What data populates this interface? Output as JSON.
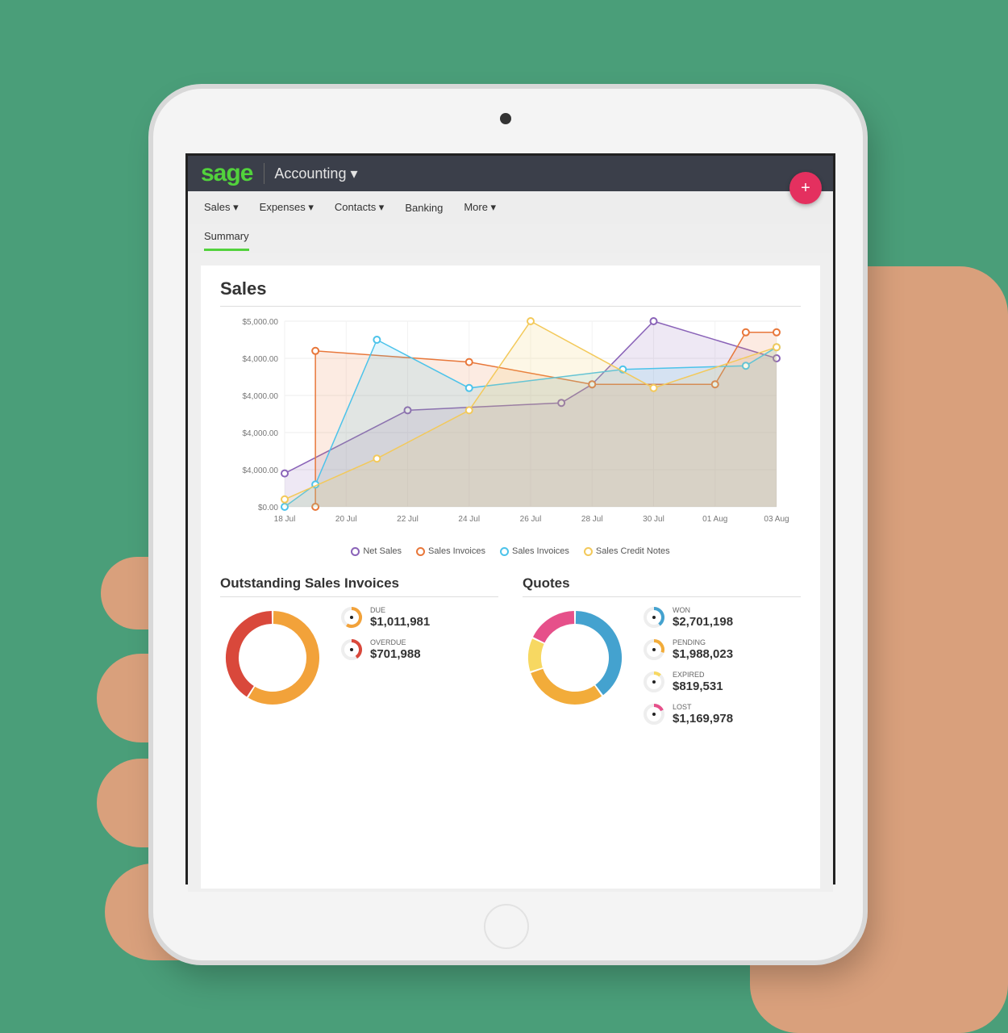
{
  "header": {
    "logo": "sage",
    "app": "Accounting ▾",
    "add_button": "+"
  },
  "nav": [
    "Sales ▾",
    "Expenses ▾",
    "Contacts ▾",
    "Banking",
    "More ▾"
  ],
  "subnav": {
    "active": "Summary"
  },
  "colors": {
    "background": "#4a9e79",
    "topbar": "#3b3f4a",
    "brand": "#52d23c",
    "fab": "#e4305f"
  },
  "sales": {
    "title": "Sales",
    "chart_data": {
      "type": "area",
      "x_ticks": [
        "18 Jul",
        "20 Jul",
        "22 Jul",
        "24 Jul",
        "26 Jul",
        "28 Jul",
        "30 Jul",
        "01 Aug",
        "03 Aug"
      ],
      "y_ticks": [
        "$0.00",
        "$4,000.00",
        "$4,000.00",
        "$4,000.00",
        "$4,000.00",
        "$5,000.00"
      ],
      "ylim": [
        0,
        5000
      ],
      "grid": true,
      "legend": "bottom",
      "series": [
        {
          "name": "Net Sales",
          "color": "#8a63b8",
          "x": [
            18,
            22,
            27,
            28,
            30,
            34
          ],
          "y": [
            900,
            2600,
            2800,
            3300,
            5000,
            4000
          ]
        },
        {
          "name": "Sales Invoices",
          "color": "#e8773a",
          "x": [
            19,
            19,
            24,
            28,
            32,
            33,
            34
          ],
          "y": [
            0,
            4200,
            3900,
            3300,
            3300,
            4700,
            4700
          ]
        },
        {
          "name": "Sales Invoices",
          "color": "#4cc3ea",
          "x": [
            18,
            19,
            21,
            24,
            29,
            33,
            34
          ],
          "y": [
            0,
            600,
            4500,
            3200,
            3700,
            3800,
            4300
          ]
        },
        {
          "name": "Sales Credit Notes",
          "color": "#f3c95a",
          "x": [
            18,
            21,
            24,
            26,
            30,
            34
          ],
          "y": [
            200,
            1300,
            2600,
            5000,
            3200,
            4300
          ]
        }
      ]
    }
  },
  "outstanding": {
    "title": "Outstanding Sales Invoices",
    "items": [
      {
        "label": "DUE",
        "value": "$1,011,981",
        "color": "#f2a23a",
        "share": 0.59
      },
      {
        "label": "OVERDUE",
        "value": "$701,988",
        "color": "#d9483b",
        "share": 0.41
      }
    ]
  },
  "quotes": {
    "title": "Quotes",
    "items": [
      {
        "label": "WON",
        "value": "$2,701,198",
        "color": "#44a2cf",
        "share": 0.4
      },
      {
        "label": "PENDING",
        "value": "$1,988,023",
        "color": "#f2ac3a",
        "share": 0.3
      },
      {
        "label": "EXPIRED",
        "value": "$819,531",
        "color": "#f7d862",
        "share": 0.12
      },
      {
        "label": "LOST",
        "value": "$1,169,978",
        "color": "#e6508a",
        "share": 0.18
      }
    ]
  }
}
